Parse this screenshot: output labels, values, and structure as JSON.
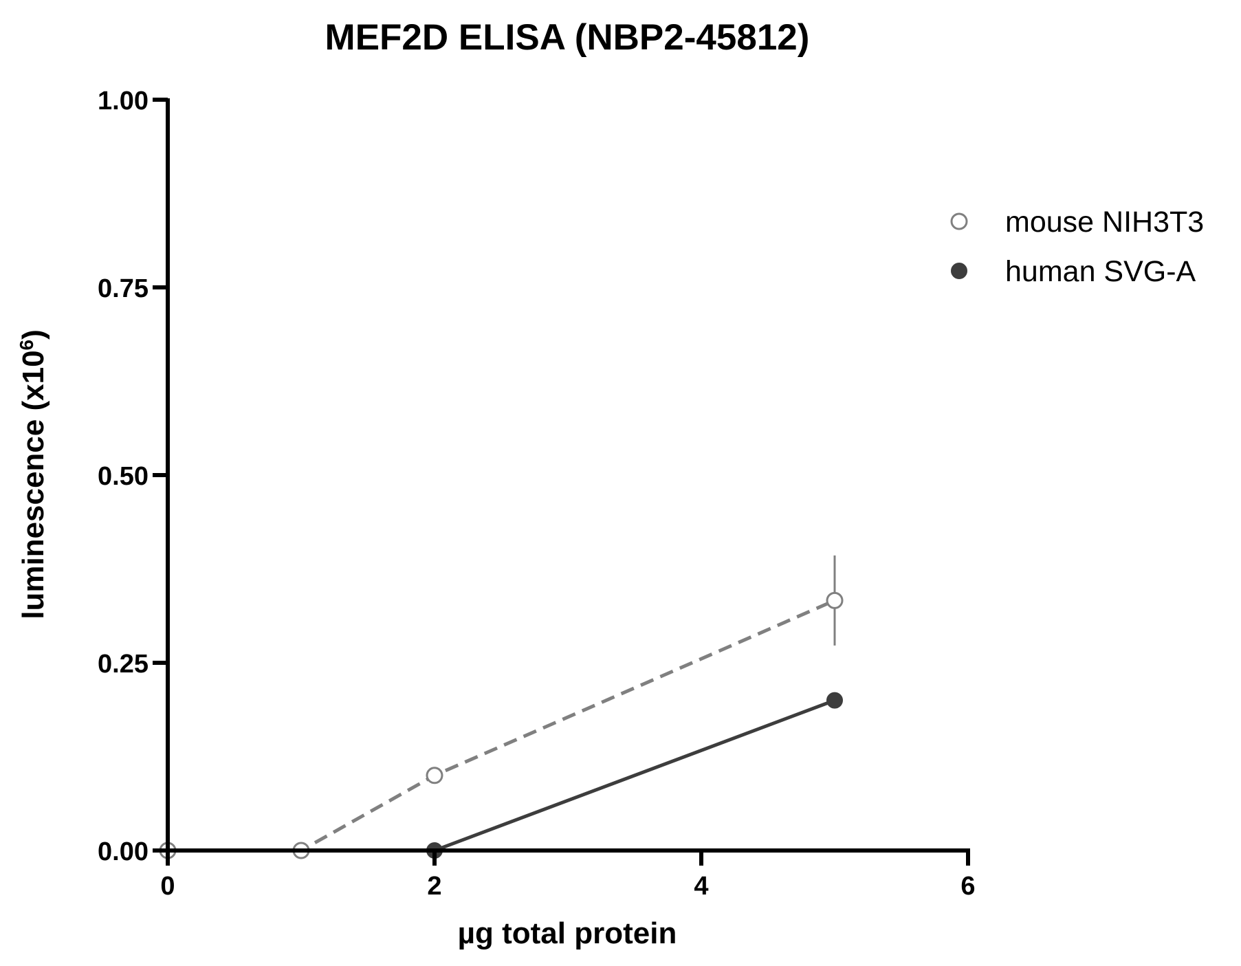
{
  "chart_data": {
    "type": "line",
    "title": "MEF2D ELISA (NBP2-45812)",
    "xlabel": "µg total protein",
    "ylabel_main": "luminescence (x10",
    "ylabel_sup": "6",
    "ylabel_close": ")",
    "xlim": [
      0,
      6
    ],
    "ylim": [
      0,
      1
    ],
    "x_ticks": [
      0,
      2,
      4,
      6
    ],
    "x_tick_labels": [
      "0",
      "2",
      "4",
      "6"
    ],
    "y_ticks": [
      0,
      0.25,
      0.5,
      0.75,
      1.0
    ],
    "y_tick_labels": [
      "0.00",
      "0.25",
      "0.50",
      "0.75",
      "1.00"
    ],
    "grid": false,
    "legend_position": "top-right",
    "series": [
      {
        "name": "mouse NIH3T3",
        "marker": "open-circle",
        "line_style": "dashed",
        "color": "#808080",
        "x": [
          0,
          1,
          2,
          5
        ],
        "y": [
          0,
          0,
          0.1,
          0.333
        ],
        "error": [
          0,
          0,
          0,
          0.06
        ]
      },
      {
        "name": "human SVG-A",
        "marker": "filled-circle",
        "line_style": "solid",
        "color": "#3d3d3d",
        "x": [
          0,
          1,
          2,
          5
        ],
        "y": [
          0,
          0,
          0,
          0.2
        ],
        "error": [
          0,
          0,
          0,
          0
        ]
      }
    ]
  }
}
